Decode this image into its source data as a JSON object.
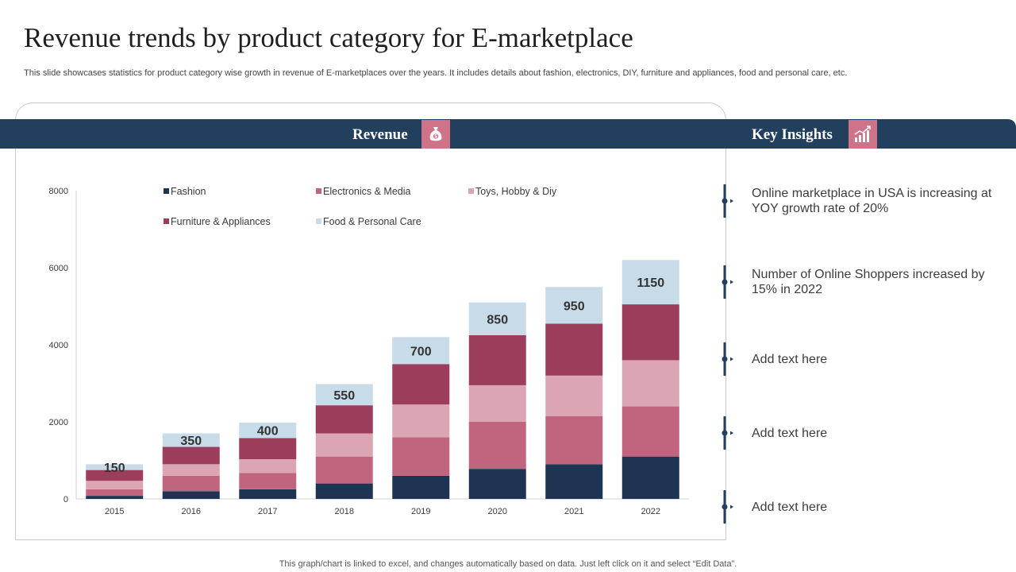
{
  "title": "Revenue trends by product category for E-marketplace",
  "subtitle": "This slide showcases statistics for product category wise growth in revenue of E-marketplaces over the years. It includes details about fashion, electronics, DIY, furniture and appliances, food and personal care, etc.",
  "revenue_header": "Revenue",
  "insights_header": "Key Insights",
  "insights": [
    "Online marketplace in USA is increasing at YOY growth rate of 20%",
    "Number of Online Shoppers increased by 15% in 2022",
    "Add text here",
    "Add text here",
    "Add text here"
  ],
  "footer": "This graph/chart is linked to excel,  and changes automatically based on data. Just left click on it and select “Edit Data”.",
  "colors": {
    "band": "#233f5e",
    "accent": "#cf7388",
    "Fashion": "#1d3552",
    "Electronics & Media": "#c1657f",
    "Toys, Hobby & Diy": "#dca5b4",
    "Furniture & Appliances": "#9c3e5b",
    "Food & Personal Care": "#c8dbe8"
  },
  "chart_data": {
    "type": "bar",
    "stacked": true,
    "categories": [
      "2015",
      "2016",
      "2017",
      "2018",
      "2019",
      "2020",
      "2021",
      "2022"
    ],
    "series": [
      {
        "name": "Fashion",
        "values": [
          80,
          200,
          250,
          400,
          600,
          780,
          900,
          1100
        ]
      },
      {
        "name": "Electronics & Media",
        "values": [
          170,
          400,
          420,
          700,
          1000,
          1220,
          1250,
          1300
        ]
      },
      {
        "name": "Toys, Hobby & Diy",
        "values": [
          220,
          300,
          360,
          600,
          850,
          950,
          1050,
          1200
        ]
      },
      {
        "name": "Furniture & Appliances",
        "values": [
          280,
          450,
          550,
          730,
          1050,
          1300,
          1350,
          1450
        ]
      },
      {
        "name": "Food & Personal Care",
        "values": [
          150,
          350,
          400,
          550,
          700,
          850,
          950,
          1150
        ]
      }
    ],
    "data_labels": [
      "150",
      "350",
      "400",
      "550",
      "700",
      "850",
      "950",
      "1150"
    ],
    "yticks": [
      0,
      2000,
      4000,
      6000,
      8000
    ],
    "ylim": [
      0,
      8000
    ],
    "legend_position": "top"
  }
}
